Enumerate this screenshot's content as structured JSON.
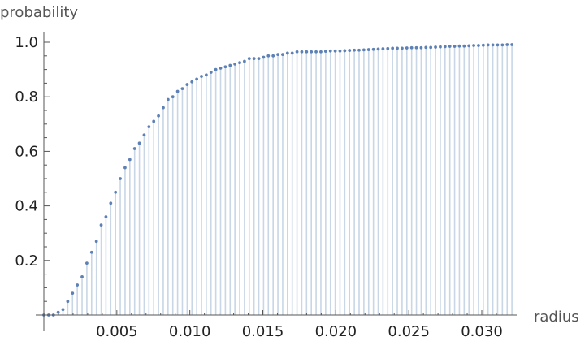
{
  "chart_data": {
    "type": "scatter",
    "style": "discrete-stem",
    "title": "",
    "xlabel": "radius",
    "ylabel": "probability",
    "xlim": [
      -0.0003,
      0.0322
    ],
    "ylim": [
      -0.02,
      1.055
    ],
    "x_ticks": [
      0.005,
      0.01,
      0.015,
      0.02,
      0.025,
      0.03
    ],
    "x_tick_labels": [
      "0.005",
      "0.010",
      "0.015",
      "0.020",
      "0.025",
      "0.030"
    ],
    "y_ticks": [
      0.2,
      0.4,
      0.6,
      0.8,
      1.0
    ],
    "y_tick_labels": [
      "0.2",
      "0.4",
      "0.6",
      "0.8",
      "1.0"
    ],
    "grid": false,
    "point_color": "#5e81b5",
    "stem_color": "#c8d6e6",
    "x_start": 0.0,
    "x_step": 0.0003272,
    "y": [
      0.0,
      0.0,
      0.0,
      0.01,
      0.02,
      0.05,
      0.08,
      0.11,
      0.14,
      0.19,
      0.23,
      0.27,
      0.33,
      0.36,
      0.41,
      0.45,
      0.5,
      0.54,
      0.57,
      0.61,
      0.63,
      0.66,
      0.69,
      0.71,
      0.73,
      0.76,
      0.79,
      0.8,
      0.82,
      0.83,
      0.845,
      0.855,
      0.865,
      0.875,
      0.88,
      0.89,
      0.9,
      0.905,
      0.91,
      0.915,
      0.92,
      0.925,
      0.93,
      0.94,
      0.94,
      0.94,
      0.945,
      0.95,
      0.95,
      0.955,
      0.955,
      0.96,
      0.96,
      0.965,
      0.965,
      0.965,
      0.965,
      0.965,
      0.965,
      0.967,
      0.968,
      0.968,
      0.968,
      0.969,
      0.97,
      0.971,
      0.971,
      0.972,
      0.973,
      0.974,
      0.975,
      0.976,
      0.977,
      0.978,
      0.978,
      0.978,
      0.979,
      0.98,
      0.98,
      0.98,
      0.981,
      0.981,
      0.982,
      0.983,
      0.984,
      0.985,
      0.985,
      0.986,
      0.986,
      0.987,
      0.988,
      0.988,
      0.989,
      0.99,
      0.99,
      0.99,
      0.99,
      0.991,
      0.991
    ]
  }
}
